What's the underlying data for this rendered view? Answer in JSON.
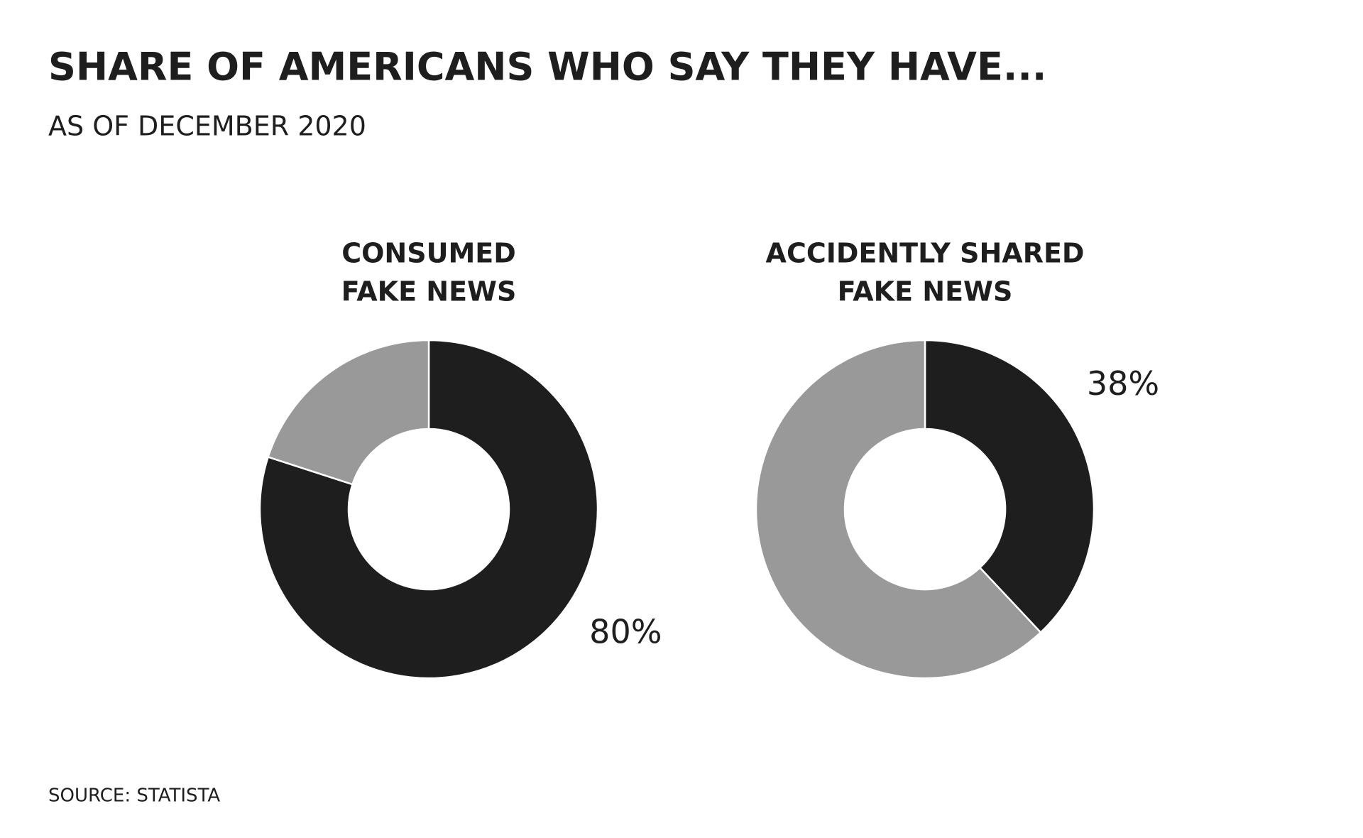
{
  "title": "SHARE OF AMERICANS WHO SAY THEY HAVE...",
  "subtitle": "AS OF DECEMBER 2020",
  "source": "SOURCE: STATISTA",
  "chart_data": [
    {
      "type": "donut",
      "title": [
        "CONSUMED",
        "FAKE NEWS"
      ],
      "values": [
        80,
        20
      ],
      "value_labels": [
        "80%",
        null
      ],
      "colors": [
        "#1e1e1e",
        "#999999"
      ]
    },
    {
      "type": "donut",
      "title": [
        "ACCIDENTLY SHARED",
        "FAKE NEWS"
      ],
      "values": [
        38,
        62
      ],
      "value_labels": [
        "38%",
        null
      ],
      "colors": [
        "#1e1e1e",
        "#999999"
      ]
    }
  ]
}
